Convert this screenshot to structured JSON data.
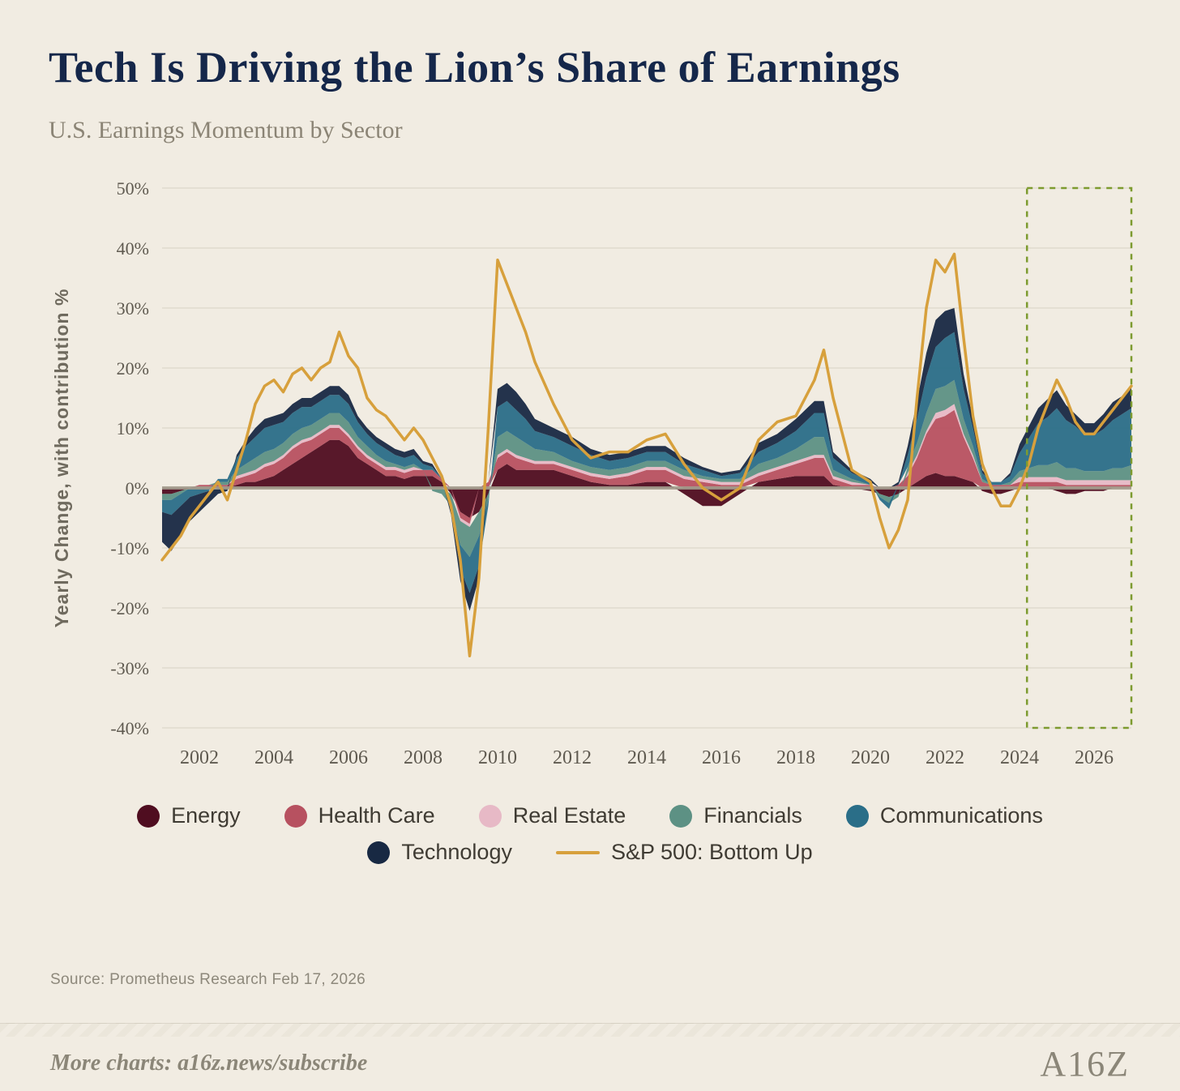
{
  "header": {
    "title": "Tech Is Driving the Lion’s Share of Earnings",
    "subtitle": "U.S. Earnings Momentum by Sector"
  },
  "source": "Source: Prometheus Research Feb 17, 2026",
  "footer": {
    "more_charts": "More charts: a16z.news/subscribe",
    "logo": "A16Z"
  },
  "colors": {
    "background": "#f1ece2",
    "title": "#15274a",
    "grid": "#ddd7ca",
    "zero_line": "#a39c8d",
    "tick_text": "#5f5a50",
    "highlight_box": "#7d9b2f"
  },
  "chart_data": {
    "type": "area",
    "stacked": true,
    "title": "Tech Is Driving the Lion’s Share of Earnings",
    "subtitle": "U.S. Earnings Momentum by Sector",
    "ylabel": "Yearly Change, with contribution %",
    "xlabel": "",
    "ylim": [
      -40,
      50
    ],
    "xlim": [
      2001,
      2027
    ],
    "grid": true,
    "legend_position": "bottom",
    "y_ticks": [
      50,
      40,
      30,
      20,
      10,
      0,
      -10,
      -20,
      -30,
      -40
    ],
    "y_tick_labels": [
      "50%",
      "40%",
      "30%",
      "20%",
      "10%",
      "0%",
      "-10%",
      "-20%",
      "-30%",
      "-40%"
    ],
    "x_ticks": [
      2002,
      2004,
      2006,
      2008,
      2010,
      2012,
      2014,
      2016,
      2018,
      2020,
      2022,
      2024,
      2026
    ],
    "highlight_box": {
      "x_start": 2024.2,
      "x_end": 2027,
      "y_start": -40,
      "y_end": 50,
      "color": "#7d9b2f",
      "style": "dashed",
      "meaning": "forecast window"
    },
    "x": [
      2001,
      2001.25,
      2001.5,
      2001.75,
      2002,
      2002.25,
      2002.5,
      2002.75,
      2003,
      2003.25,
      2003.5,
      2003.75,
      2004,
      2004.25,
      2004.5,
      2004.75,
      2005,
      2005.25,
      2005.5,
      2005.75,
      2006,
      2006.25,
      2006.5,
      2006.75,
      2007,
      2007.25,
      2007.5,
      2007.75,
      2008,
      2008.25,
      2008.5,
      2008.75,
      2009,
      2009.25,
      2009.5,
      2009.75,
      2010,
      2010.25,
      2010.5,
      2010.75,
      2011,
      2011.5,
      2012,
      2012.5,
      2013,
      2013.5,
      2014,
      2014.5,
      2015,
      2015.5,
      2016,
      2016.5,
      2017,
      2017.5,
      2018,
      2018.25,
      2018.5,
      2018.75,
      2019,
      2019.5,
      2020,
      2020.25,
      2020.5,
      2020.75,
      2021,
      2021.25,
      2021.5,
      2021.75,
      2022,
      2022.25,
      2022.5,
      2022.75,
      2023,
      2023.25,
      2023.5,
      2023.75,
      2024,
      2024.25,
      2024.5,
      2024.75,
      2025,
      2025.25,
      2025.5,
      2025.75,
      2026,
      2026.25,
      2026.5,
      2026.75,
      2027
    ],
    "series": [
      {
        "name": "Energy",
        "type": "area",
        "color": "#4f0d20",
        "values": [
          -1,
          -1,
          -0.5,
          0,
          0,
          0,
          0,
          0,
          0.5,
          1,
          1,
          1.5,
          2,
          3,
          4,
          5,
          6,
          7,
          8,
          8,
          7,
          5,
          4,
          3,
          2,
          2,
          1.5,
          2,
          2,
          2,
          1,
          -1,
          -4,
          -5,
          -4,
          -1,
          3,
          4,
          3,
          3,
          3,
          3,
          2,
          1,
          0.5,
          0.5,
          1,
          1,
          -1,
          -3,
          -3,
          -1,
          1,
          1.5,
          2,
          2,
          2,
          2,
          0.5,
          0,
          -0.5,
          -1,
          -1.5,
          -1,
          0,
          1,
          2,
          2.5,
          2,
          2,
          1.5,
          1,
          -0.5,
          -1,
          -1,
          -0.5,
          0,
          0,
          0,
          0,
          -0.5,
          -1,
          -1,
          -0.5,
          -0.5,
          -0.5,
          0,
          0,
          0
        ]
      },
      {
        "name": "Health Care",
        "type": "area",
        "color": "#b75160",
        "values": [
          0,
          0,
          0,
          0,
          0.5,
          0.5,
          0.5,
          0.5,
          1,
          1,
          1.5,
          2,
          2,
          2,
          2.5,
          2.5,
          2,
          2,
          2,
          2,
          1.5,
          1.5,
          1,
          1,
          1,
          1,
          1,
          1,
          1,
          1,
          0.5,
          0,
          -1,
          -1,
          0,
          1,
          2,
          2,
          2,
          1.5,
          1,
          1,
          1,
          1,
          1,
          1.5,
          2,
          2,
          1.5,
          1,
          0.5,
          0.5,
          1,
          1.5,
          2,
          2.5,
          3,
          3,
          1,
          0.5,
          0.5,
          0,
          0,
          0.5,
          2,
          4,
          7,
          9,
          10,
          11,
          7,
          4,
          1,
          0.5,
          0.5,
          0.5,
          1,
          1,
          1,
          1,
          1,
          0.5,
          0.5,
          0.5,
          0.5,
          0.5,
          0.5,
          0.5,
          0.5
        ]
      },
      {
        "name": "Real Estate",
        "type": "area",
        "color": "#e7b9c6",
        "values": [
          0,
          0,
          0,
          0,
          0,
          0,
          0,
          0,
          0.5,
          0.5,
          0.5,
          0.5,
          0.5,
          0.5,
          0.5,
          0.5,
          0.5,
          0.5,
          0.5,
          0.5,
          0.5,
          0.5,
          0.5,
          0.5,
          0.5,
          0.5,
          0.5,
          0.5,
          0,
          0,
          0,
          0,
          -0.5,
          -0.5,
          0,
          0,
          0.5,
          0.5,
          0.5,
          0.5,
          0.5,
          0.5,
          0.5,
          0.5,
          0.5,
          0.5,
          0.5,
          0.5,
          0.5,
          0.5,
          0.5,
          0.5,
          0.5,
          0.5,
          0.5,
          0.5,
          0.5,
          0.5,
          0.5,
          0.5,
          0,
          0,
          0,
          0,
          0.5,
          0.5,
          0.5,
          1,
          1,
          1,
          0.5,
          0.5,
          0,
          0,
          0,
          0,
          0.8,
          0.8,
          0.8,
          0.8,
          0.8,
          0.8,
          0.8,
          0.8,
          0.8,
          0.8,
          0.8,
          0.8,
          0.8
        ]
      },
      {
        "name": "Financials",
        "type": "area",
        "color": "#5d9184",
        "values": [
          -1,
          -1,
          -0.5,
          0,
          0,
          0,
          0.5,
          0.5,
          1,
          1.5,
          2,
          2,
          2,
          2,
          2,
          2,
          2,
          2,
          2,
          2,
          2,
          1.5,
          1.5,
          1,
          1,
          0.5,
          0.5,
          0.5,
          0,
          -0.5,
          -1,
          -2,
          -4,
          -5,
          -4,
          -1,
          3,
          3,
          3,
          2.5,
          2,
          1.5,
          1,
          1,
          1,
          1,
          1,
          1,
          1,
          0.5,
          0.5,
          0.5,
          1.5,
          1.5,
          2,
          2.5,
          3,
          3,
          1,
          0.5,
          0,
          -0.5,
          -1,
          -0.5,
          1,
          2,
          3,
          4,
          4,
          4,
          2.5,
          1.5,
          0.5,
          0,
          0,
          0.5,
          1,
          1.5,
          2,
          2,
          2.5,
          2,
          2,
          1.5,
          1.5,
          1.5,
          2,
          2,
          2.5
        ]
      },
      {
        "name": "Communications",
        "type": "area",
        "color": "#2a6e88",
        "values": [
          -2,
          -2.5,
          -2,
          -1.5,
          -1,
          -0.5,
          0.5,
          0.5,
          2,
          3,
          3.5,
          4,
          4,
          3.5,
          3.5,
          3.5,
          3,
          3,
          3,
          3,
          3,
          2.5,
          2,
          2,
          2,
          1.5,
          1.5,
          1.5,
          1,
          0.5,
          0,
          -1,
          -4,
          -6,
          -5,
          -1,
          5,
          5,
          4.5,
          4,
          3,
          2.5,
          2.5,
          2,
          1.5,
          1.5,
          1.5,
          1.5,
          1,
          1,
          0.5,
          1,
          2,
          2.5,
          3,
          3.5,
          4,
          4,
          2,
          1,
          0.5,
          -0.5,
          -1,
          0,
          2,
          4,
          6,
          7,
          8,
          8,
          5,
          3,
          1,
          0.5,
          0.5,
          1,
          3,
          5,
          7,
          8,
          9,
          8,
          7,
          6,
          6,
          7,
          8,
          9,
          9.5
        ]
      },
      {
        "name": "Technology",
        "type": "area",
        "color": "#182943",
        "values": [
          -5,
          -6,
          -5,
          -4,
          -3,
          -2,
          -1,
          -0.5,
          0.5,
          1,
          1.5,
          1.5,
          1.5,
          1.5,
          1.5,
          1.5,
          1.5,
          1.5,
          1.5,
          1.5,
          1.5,
          1,
          1,
          1,
          1,
          1,
          1,
          1,
          0.5,
          0.5,
          0,
          -0.5,
          -2,
          -3,
          -2,
          0,
          3,
          3,
          3,
          2.5,
          2,
          1.5,
          1.5,
          1,
          1,
          1,
          1,
          1,
          1,
          0.5,
          0.5,
          0.5,
          1.5,
          1.5,
          2,
          2,
          2,
          2,
          1,
          0.5,
          0.5,
          0,
          0,
          0.5,
          1.5,
          3,
          4,
          4.5,
          4.5,
          4,
          2.5,
          1.5,
          0.5,
          0,
          0,
          0.5,
          1.5,
          2,
          2.5,
          3,
          3,
          2.5,
          2,
          2,
          2,
          2.5,
          3,
          3,
          3.5
        ]
      },
      {
        "name": "S&P 500: Bottom Up",
        "type": "line",
        "color": "#d7a03c",
        "values": [
          -12,
          -10,
          -8,
          -5,
          -3,
          -1,
          1,
          -2,
          3,
          8,
          14,
          17,
          18,
          16,
          19,
          20,
          18,
          20,
          21,
          26,
          22,
          20,
          15,
          13,
          12,
          10,
          8,
          10,
          8,
          5,
          2,
          -3,
          -12,
          -28,
          -15,
          10,
          38,
          34,
          30,
          26,
          21,
          14,
          8,
          5,
          6,
          6,
          8,
          9,
          4,
          0,
          -2,
          0,
          8,
          11,
          12,
          15,
          18,
          23,
          15,
          3,
          1,
          -5,
          -10,
          -7,
          -2,
          15,
          30,
          38,
          36,
          39,
          25,
          12,
          4,
          0,
          -3,
          -3,
          0,
          4,
          10,
          14,
          18,
          15,
          11,
          9,
          9,
          11,
          13,
          15,
          17
        ]
      }
    ]
  }
}
